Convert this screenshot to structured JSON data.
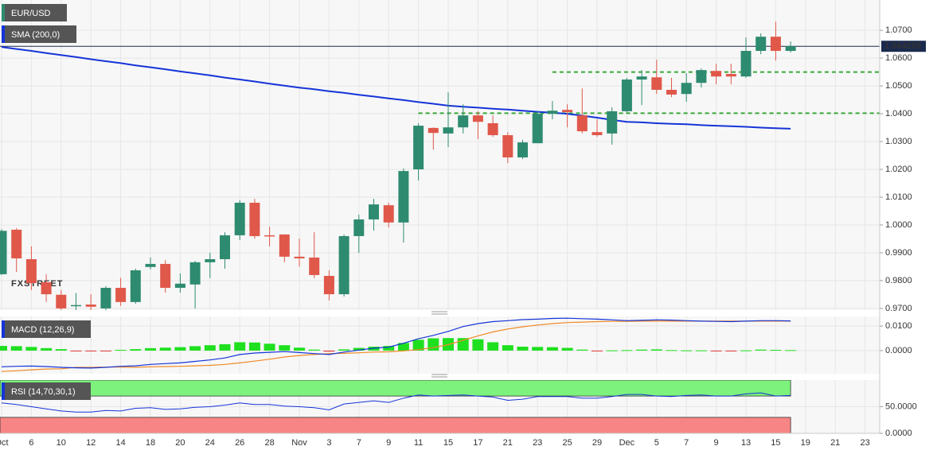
{
  "chart_data": [
    {
      "type": "candlestick",
      "title": "EUR/USD",
      "watermark": "FXSTREET",
      "categories": [
        "Oct",
        null,
        "6",
        null,
        "10",
        null,
        "12",
        null,
        "14",
        null,
        "18",
        null,
        "20",
        null,
        "24",
        null,
        "26",
        null,
        "28",
        null,
        "Nov",
        null,
        "3",
        null,
        "7",
        null,
        "9",
        null,
        "11",
        null,
        "15",
        null,
        "17",
        null,
        "21",
        null,
        "23",
        null,
        "25",
        null,
        "29",
        null,
        "Dec",
        null,
        "5",
        null,
        "7",
        null,
        "9",
        null,
        "13",
        null,
        "15",
        null,
        "19",
        null,
        "21",
        null,
        "23"
      ],
      "open": [
        0.9823,
        0.9983,
        0.9877,
        0.9794,
        0.9749,
        0.971,
        0.9714,
        0.97,
        0.9774,
        0.9723,
        0.9849,
        0.986,
        0.9774,
        0.9786,
        0.9866,
        0.9877,
        0.9963,
        1.008,
        0.9963,
        0.9966,
        0.9886,
        0.9883,
        0.9817,
        0.9751,
        0.996,
        1.002,
        1.0071,
        1.0009,
        1.02,
        1.0349,
        1.0329,
        1.0351,
        1.0394,
        1.0366,
        1.0323,
        1.0243,
        1.0294,
        1.04,
        1.0414,
        1.0394,
        1.0334,
        1.0329,
        1.0409,
        1.0523,
        1.0531,
        1.0486,
        1.0471,
        1.0511,
        1.0554,
        1.0543,
        1.0534,
        1.0626,
        1.0677,
        1.0626,
        null,
        null,
        null,
        null,
        null
      ],
      "high": [
        0.9985,
        0.9989,
        0.9923,
        0.9823,
        0.9766,
        0.9755,
        0.9751,
        0.978,
        0.981,
        0.9843,
        0.9883,
        0.9874,
        0.9826,
        0.9871,
        0.99,
        0.9974,
        1.0089,
        1.0094,
        0.9994,
        0.9966,
        0.9951,
        0.9974,
        0.9837,
        0.9966,
        1.0037,
        1.0094,
        1.008,
        1.0203,
        1.0366,
        1.0351,
        1.0477,
        1.0434,
        1.0409,
        1.0394,
        1.0334,
        1.0306,
        1.0409,
        1.0446,
        1.0434,
        1.0491,
        1.038,
        1.0423,
        1.0529,
        1.0557,
        1.0594,
        1.0529,
        1.0546,
        1.0563,
        1.058,
        1.058,
        1.0674,
        1.0689,
        1.0731,
        1.066,
        null,
        null,
        null,
        null,
        null
      ],
      "low": [
        0.982,
        0.9831,
        0.9766,
        0.9723,
        0.968,
        0.966,
        0.967,
        0.967,
        0.9709,
        0.9717,
        0.984,
        0.9757,
        0.9757,
        0.97,
        0.9809,
        0.9843,
        0.9946,
        0.9951,
        0.9923,
        0.9866,
        0.9851,
        0.9809,
        0.9729,
        0.9743,
        0.99,
        0.998,
        0.9991,
        0.9937,
        1.016,
        1.0271,
        1.028,
        1.0329,
        1.0309,
        1.0317,
        1.0223,
        1.0237,
        1.0294,
        1.038,
        1.0351,
        1.0329,
        1.0317,
        1.0289,
        1.0403,
        1.0431,
        1.0471,
        1.046,
        1.0443,
        1.0494,
        1.0506,
        1.0506,
        1.0529,
        1.0614,
        1.0591,
        1.062,
        null,
        null,
        null,
        null,
        null
      ],
      "close": [
        0.9979,
        0.988,
        0.9791,
        0.9751,
        0.97,
        0.9712,
        0.9706,
        0.9774,
        0.9723,
        0.9837,
        0.986,
        0.9774,
        0.9789,
        0.9866,
        0.9877,
        0.9963,
        1.008,
        0.996,
        0.996,
        0.9886,
        0.988,
        0.982,
        0.9751,
        0.996,
        1.002,
        1.0074,
        1.0009,
        1.0194,
        1.0357,
        1.0331,
        1.0351,
        1.0394,
        1.0371,
        1.0323,
        1.0243,
        1.0297,
        1.04,
        1.0411,
        1.0406,
        1.0337,
        1.0323,
        1.0409,
        1.0523,
        1.0534,
        1.0486,
        1.0469,
        1.0511,
        1.0557,
        1.0534,
        1.0534,
        1.0626,
        1.0677,
        1.0626,
        1.0643,
        null,
        null,
        null,
        null,
        null
      ],
      "up_color": "#2e8b70",
      "down_color": "#e0584a",
      "series": [
        {
          "name": "SMA (200,0)",
          "color": "#1534d8",
          "values": [
            1.064,
            1.0633,
            1.0626,
            1.0618,
            1.0611,
            1.0604,
            1.0596,
            1.0589,
            1.0582,
            1.0574,
            1.0567,
            1.056,
            1.0552,
            1.0545,
            1.0538,
            1.053,
            1.0523,
            1.0516,
            1.0508,
            1.0501,
            1.0494,
            1.0488,
            1.0481,
            1.0475,
            1.0468,
            1.0462,
            1.0455,
            1.0449,
            1.0442,
            1.0436,
            1.0429,
            1.0425,
            1.0422,
            1.0418,
            1.0415,
            1.0411,
            1.0407,
            1.0404,
            1.04,
            1.0393,
            1.0386,
            1.0378,
            1.0371,
            1.0369,
            1.0366,
            1.0364,
            1.0362,
            1.0359,
            1.0357,
            1.0355,
            1.0353,
            1.035,
            1.0348,
            1.0346,
            null,
            null,
            null,
            null,
            null
          ]
        }
      ],
      "last_price": {
        "value": 1.06425,
        "label": "1.064250"
      },
      "levels": [
        1.055,
        1.0402
      ],
      "level_color": "#3aa83a",
      "ylim": [
        0.9694,
        1.0809
      ],
      "yticks": [
        {
          "value": 0.97,
          "label": "0.9700"
        },
        {
          "value": 0.98,
          "label": "0.9800"
        },
        {
          "value": 0.99,
          "label": "0.9900"
        },
        {
          "value": 1.0,
          "label": "1.0000"
        },
        {
          "value": 1.01,
          "label": "1.0100"
        },
        {
          "value": 1.02,
          "label": "1.0200"
        },
        {
          "value": 1.03,
          "label": "1.0300"
        },
        {
          "value": 1.04,
          "label": "1.0400"
        },
        {
          "value": 1.05,
          "label": "1.0500"
        },
        {
          "value": 1.06,
          "label": "1.0600"
        },
        {
          "value": 1.07,
          "label": "1.0700"
        }
      ],
      "grid": true
    },
    {
      "type": "macd",
      "title": "MACD (12,26,9)",
      "macd": [
        -0.0066,
        -0.0064,
        -0.0063,
        -0.0065,
        -0.0068,
        -0.007,
        -0.0071,
        -0.0068,
        -0.0064,
        -0.0062,
        -0.0056,
        -0.0053,
        -0.005,
        -0.0044,
        -0.0038,
        -0.003,
        -0.0016,
        -0.001,
        -0.0007,
        -0.0004,
        -0.0008,
        -0.0012,
        -0.0016,
        -0.0006,
        0.0002,
        0.001,
        0.0014,
        0.003,
        0.0048,
        0.0062,
        0.0078,
        0.0098,
        0.011,
        0.0118,
        0.0122,
        0.0126,
        0.0128,
        0.0131,
        0.0132,
        0.013,
        0.0128,
        0.0125,
        0.0122,
        0.0123,
        0.0125,
        0.0124,
        0.0122,
        0.012,
        0.0119,
        0.0118,
        0.012,
        0.0122,
        0.0122,
        0.0121,
        null,
        null,
        null,
        null,
        null
      ],
      "signal": [
        -0.0085,
        -0.0082,
        -0.0078,
        -0.0075,
        -0.0074,
        -0.0068,
        -0.0068,
        -0.0067,
        -0.0067,
        -0.0068,
        -0.0066,
        -0.0065,
        -0.0064,
        -0.0062,
        -0.006,
        -0.0056,
        -0.005,
        -0.0043,
        -0.0035,
        -0.0026,
        -0.002,
        -0.0016,
        -0.0012,
        -0.0011,
        -0.0009,
        -0.0006,
        -0.0005,
        -0.0001,
        0.0004,
        0.0012,
        0.0024,
        0.0042,
        0.006,
        0.0076,
        0.0088,
        0.0097,
        0.0104,
        0.011,
        0.0114,
        0.0116,
        0.0118,
        0.0119,
        0.0119,
        0.012,
        0.012,
        0.012,
        0.012,
        0.012,
        0.012,
        0.012,
        0.012,
        0.012,
        0.012,
        0.012,
        null,
        null,
        null,
        null,
        null
      ],
      "histogram": [
        0.0019,
        0.0018,
        0.0015,
        0.001,
        0.0006,
        -0.0002,
        -0.0003,
        -0.0001,
        0.0003,
        0.0006,
        0.001,
        0.0012,
        0.0014,
        0.0018,
        0.0022,
        0.0026,
        0.0034,
        0.0033,
        0.0028,
        0.0022,
        0.0012,
        0.0004,
        -0.0004,
        0.0005,
        0.0011,
        0.0016,
        0.0019,
        0.0031,
        0.0044,
        0.005,
        0.0051,
        0.0051,
        0.0046,
        0.0034,
        0.0022,
        0.0016,
        0.0015,
        0.0014,
        0.0011,
        0.0004,
        -0.0002,
        0.0001,
        0.0002,
        0.0004,
        0.0005,
        0.0002,
        0.0001,
        0.0001,
        -0.0002,
        -0.0003,
        0.0001,
        0.0004,
        0.0003,
        0.0002,
        null,
        null,
        null,
        null,
        null
      ],
      "macd_color": "#1534d8",
      "signal_color": "#f08a24",
      "positive_color": "#1fe01f",
      "negative_color": "#e03a3a",
      "ylim": [
        -0.0094,
        0.0139
      ],
      "yticks": [
        {
          "value": 0.0,
          "label": "0.0000"
        },
        {
          "value": 0.01,
          "label": "0.0100"
        }
      ],
      "grid": true
    },
    {
      "type": "rsi",
      "title": "RSI (14,70,30,1)",
      "values": [
        57,
        54,
        50,
        46,
        42,
        40,
        40,
        43,
        42,
        47,
        48,
        45,
        46,
        49,
        50,
        53,
        57,
        54,
        54,
        51,
        50,
        48,
        44,
        55,
        58,
        61,
        58,
        66,
        72,
        70,
        71,
        72,
        70,
        68,
        62,
        64,
        69,
        69,
        69,
        66,
        66,
        69,
        73,
        73,
        70,
        69,
        71,
        72,
        70,
        70,
        74,
        76,
        70,
        71,
        null,
        null,
        null,
        null,
        null
      ],
      "color": "#1534d8",
      "overbought": 70,
      "oversold": 30,
      "overbought_color": "#7df27d",
      "oversold_color": "#f88585",
      "ylim": [
        0,
        100
      ],
      "yticks": [
        {
          "value": 0,
          "label": "0.0000"
        },
        {
          "value": 50,
          "label": "50.0000"
        }
      ],
      "grid": true
    }
  ]
}
